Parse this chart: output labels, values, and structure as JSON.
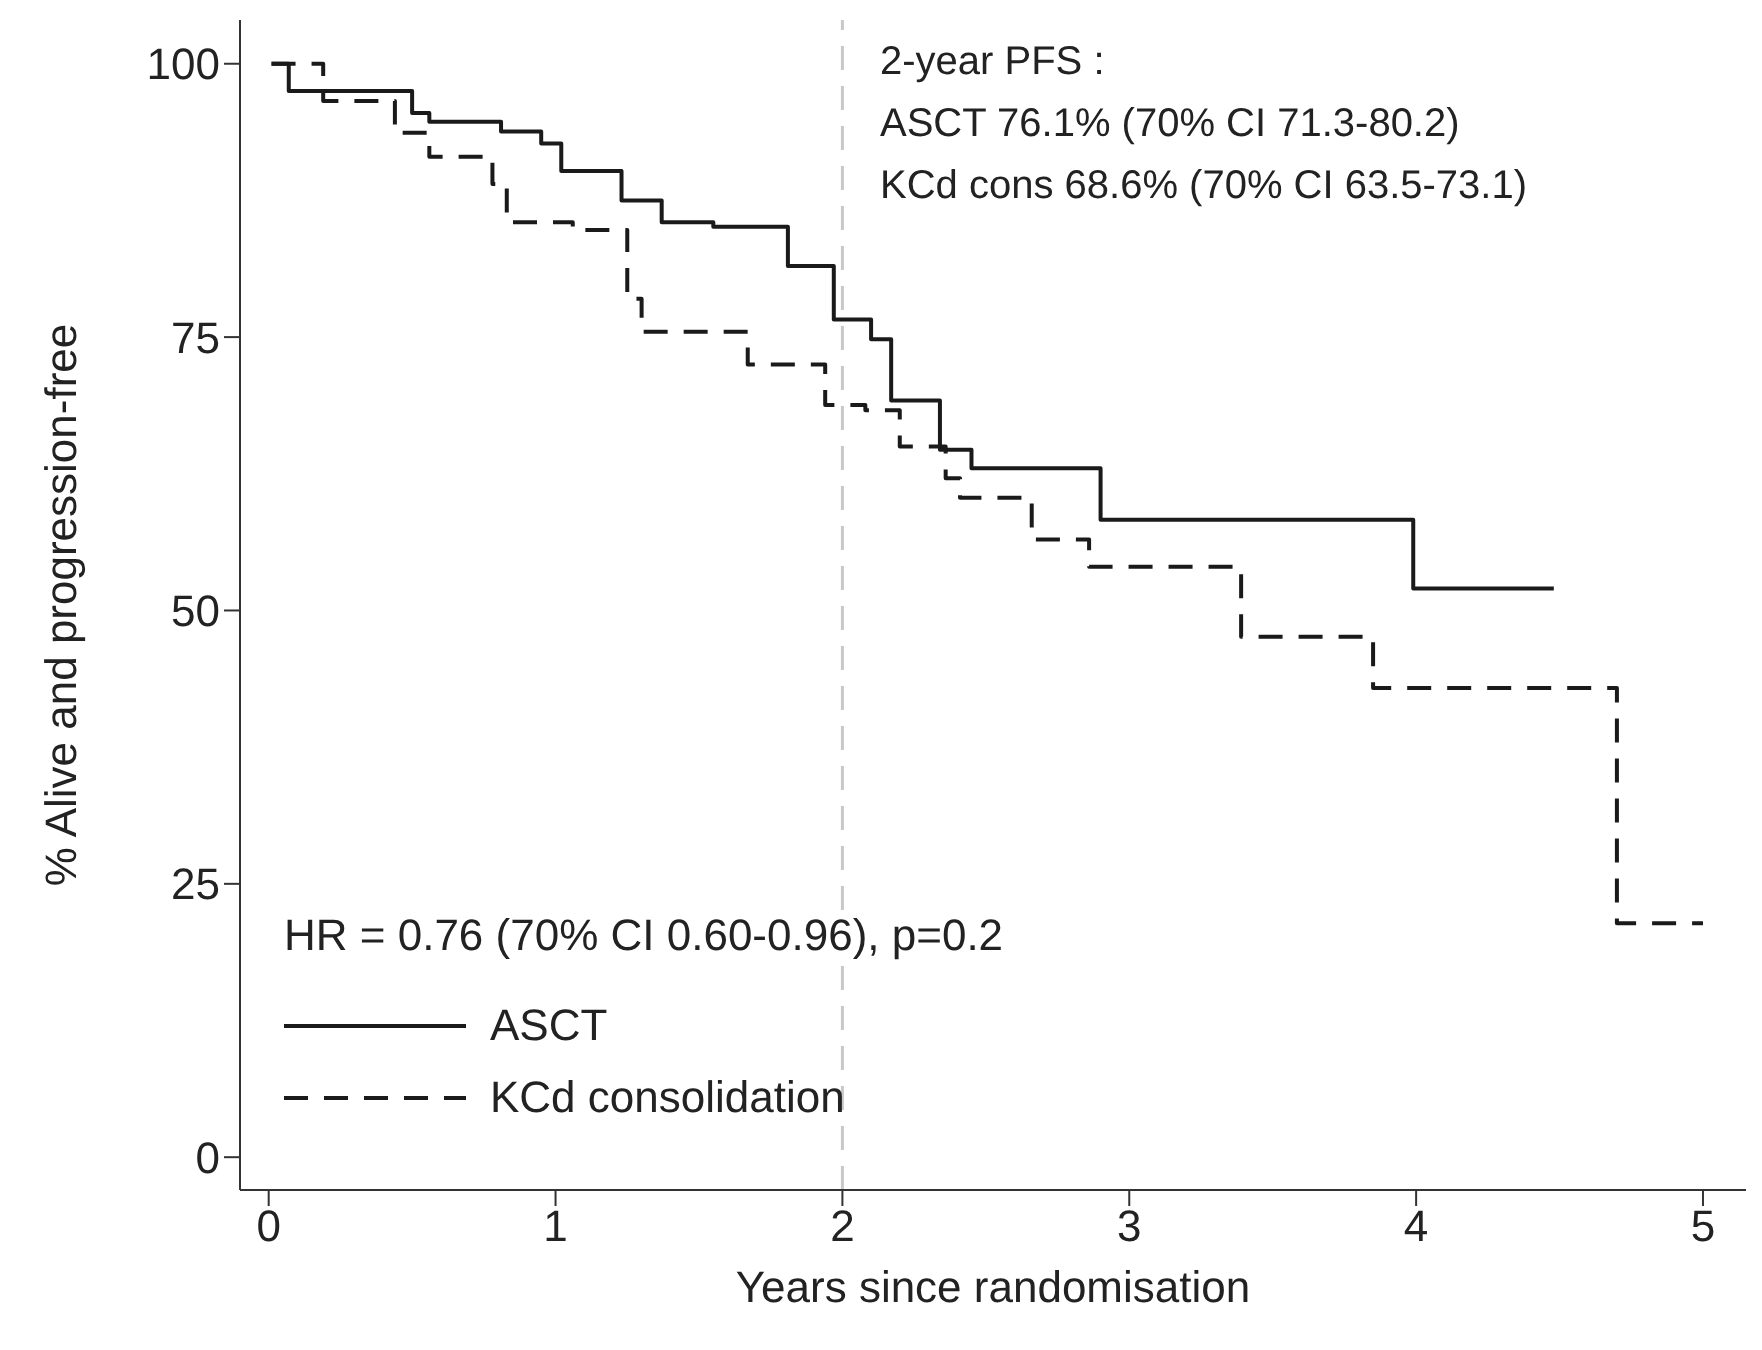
{
  "chart_data": {
    "type": "step",
    "xlabel": "Years since randomisation",
    "ylabel": "% Alive and progression-free",
    "xlim": [
      -0.1,
      5.15
    ],
    "xticks": [
      0,
      1,
      2,
      3,
      4,
      5
    ],
    "ylim": [
      -3,
      104
    ],
    "yticks": [
      0,
      25,
      50,
      75,
      100
    ],
    "legend": "bottom left",
    "marker": "none",
    "series": [
      {
        "name": "ASCT",
        "color": "#1a1a1a",
        "line_style": "solid",
        "x": [
          0.01,
          0.07,
          0.5,
          0.56,
          0.81,
          0.95,
          1.02,
          1.23,
          1.37,
          1.55,
          1.81,
          1.97,
          2.1,
          2.17,
          2.34,
          2.45,
          2.73,
          2.9,
          3.99,
          4.48
        ],
        "values": [
          100,
          97.5,
          95.5,
          94.7,
          93.8,
          92.7,
          90.2,
          87.5,
          85.5,
          85.1,
          81.5,
          76.6,
          74.8,
          69.2,
          64.7,
          63,
          63,
          58.3,
          52,
          52
        ]
      },
      {
        "name": "KCd consolidation",
        "color": "#1a1a1a",
        "line_style": "dashed",
        "x": [
          0.01,
          0.19,
          0.44,
          0.56,
          0.78,
          0.83,
          1.06,
          1.25,
          1.3,
          1.67,
          1.94,
          2.08,
          2.2,
          2.36,
          2.41,
          2.66,
          2.86,
          3.39,
          3.85,
          4.7,
          5.0
        ],
        "values": [
          100,
          96.6,
          93.7,
          91.5,
          89,
          85.5,
          84.8,
          78.5,
          75.5,
          72.5,
          68.8,
          68.3,
          65,
          62.1,
          60.3,
          56.5,
          54,
          47.6,
          42.9,
          21.4,
          21.4
        ]
      }
    ],
    "ref_lines": [
      {
        "axis": "x",
        "value": 2,
        "color": "#c8c8c8",
        "line_style": "dashed"
      }
    ],
    "annotations": [
      "2-year PFS :",
      "ASCT 76.1% (70% CI 71.3-80.2)",
      "KCd cons 68.6% (70% CI 63.5-73.1)",
      "HR = 0.76 (70% CI 0.60-0.96), p=0.2"
    ]
  }
}
